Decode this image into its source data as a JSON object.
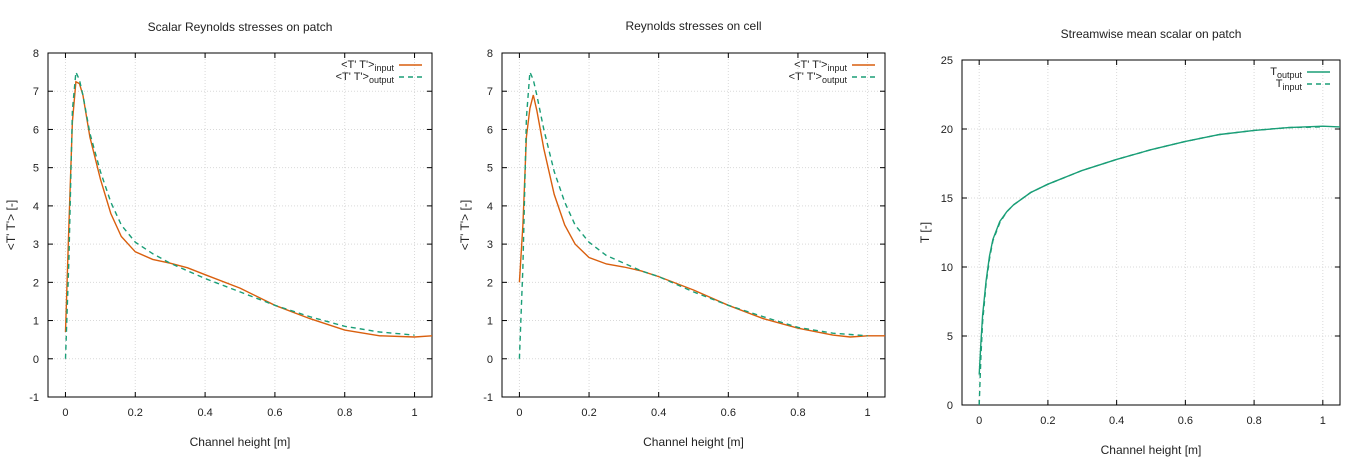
{
  "chart_data": [
    {
      "type": "line",
      "title": "Scalar Reynolds stresses on patch",
      "xlabel": "Channel height [m]",
      "ylabel": "<T' T'> [-]",
      "xlim": [
        -0.05,
        1.05
      ],
      "ylim": [
        -1,
        8
      ],
      "xticks": [
        0,
        0.2,
        0.4,
        0.6,
        0.8,
        1
      ],
      "xtick_labels": [
        "0",
        "0.2",
        "0.4",
        "0.6",
        "0.8",
        "1"
      ],
      "yticks": [
        -1,
        0,
        1,
        2,
        3,
        4,
        5,
        6,
        7,
        8
      ],
      "ytick_labels": [
        "-1",
        "0",
        "1",
        "2",
        "3",
        "4",
        "5",
        "6",
        "7",
        "8"
      ],
      "grid": true,
      "legend_position": "top-right",
      "series": [
        {
          "name": "<T' T'>",
          "name_sub": "input",
          "color": "#d95f0e",
          "dash": "solid",
          "x": [
            0,
            0.01,
            0.02,
            0.03,
            0.04,
            0.05,
            0.07,
            0.1,
            0.13,
            0.16,
            0.2,
            0.25,
            0.3,
            0.35,
            0.4,
            0.5,
            0.6,
            0.7,
            0.8,
            0.9,
            1.0,
            1.05
          ],
          "y": [
            0.7,
            3.5,
            6.2,
            7.25,
            7.2,
            6.9,
            5.8,
            4.7,
            3.8,
            3.2,
            2.8,
            2.6,
            2.5,
            2.38,
            2.2,
            1.85,
            1.4,
            1.05,
            0.75,
            0.6,
            0.57,
            0.6
          ]
        },
        {
          "name": "<T' T'>",
          "name_sub": "output",
          "color": "#1a9e77",
          "dash": "dashed",
          "x": [
            0,
            0.01,
            0.02,
            0.03,
            0.04,
            0.05,
            0.07,
            0.1,
            0.13,
            0.16,
            0.2,
            0.25,
            0.3,
            0.35,
            0.4,
            0.5,
            0.6,
            0.7,
            0.8,
            0.9,
            1.0
          ],
          "y": [
            0.0,
            2.6,
            6.5,
            7.5,
            7.3,
            6.9,
            5.9,
            4.9,
            4.1,
            3.5,
            3.05,
            2.75,
            2.5,
            2.3,
            2.1,
            1.75,
            1.4,
            1.1,
            0.85,
            0.7,
            0.62
          ]
        }
      ]
    },
    {
      "type": "line",
      "title": "Reynolds stresses on cell",
      "xlabel": "Channel height [m]",
      "ylabel": "<T' T'> [-]",
      "xlim": [
        -0.05,
        1.05
      ],
      "ylim": [
        -1,
        8
      ],
      "xticks": [
        0,
        0.2,
        0.4,
        0.6,
        0.8,
        1
      ],
      "xtick_labels": [
        "0",
        "0.2",
        "0.4",
        "0.6",
        "0.8",
        "1"
      ],
      "yticks": [
        -1,
        0,
        1,
        2,
        3,
        4,
        5,
        6,
        7,
        8
      ],
      "ytick_labels": [
        "-1",
        "0",
        "1",
        "2",
        "3",
        "4",
        "5",
        "6",
        "7",
        "8"
      ],
      "grid": true,
      "legend_position": "top-right",
      "series": [
        {
          "name": "<T' T'>",
          "name_sub": "input",
          "color": "#d95f0e",
          "dash": "solid",
          "x": [
            0,
            0.01,
            0.02,
            0.03,
            0.04,
            0.05,
            0.07,
            0.1,
            0.13,
            0.16,
            0.2,
            0.25,
            0.3,
            0.35,
            0.4,
            0.5,
            0.6,
            0.7,
            0.8,
            0.9,
            0.95,
            1.0,
            1.05
          ],
          "y": [
            2.0,
            3.5,
            5.8,
            6.55,
            6.9,
            6.5,
            5.5,
            4.3,
            3.5,
            3.0,
            2.65,
            2.48,
            2.4,
            2.3,
            2.15,
            1.8,
            1.4,
            1.05,
            0.8,
            0.62,
            0.57,
            0.6,
            0.6
          ]
        },
        {
          "name": "<T' T'>",
          "name_sub": "output",
          "color": "#1a9e77",
          "dash": "dashed",
          "x": [
            0,
            0.01,
            0.02,
            0.03,
            0.04,
            0.05,
            0.07,
            0.1,
            0.13,
            0.16,
            0.2,
            0.25,
            0.3,
            0.35,
            0.4,
            0.5,
            0.6,
            0.7,
            0.8,
            0.9,
            1.0
          ],
          "y": [
            0.0,
            2.4,
            6.3,
            7.5,
            7.3,
            6.9,
            6.0,
            4.9,
            4.1,
            3.5,
            3.05,
            2.7,
            2.5,
            2.3,
            2.15,
            1.75,
            1.4,
            1.1,
            0.82,
            0.67,
            0.6
          ]
        }
      ]
    },
    {
      "type": "line",
      "title": "Streamwise mean scalar on patch",
      "xlabel": "Channel height [m]",
      "ylabel": "T [-]",
      "xlim": [
        -0.05,
        1.05
      ],
      "ylim": [
        0,
        25
      ],
      "xticks": [
        0,
        0.2,
        0.4,
        0.6,
        0.8,
        1
      ],
      "xtick_labels": [
        "0",
        "0.2",
        "0.4",
        "0.6",
        "0.8",
        "1"
      ],
      "yticks": [
        0,
        5,
        10,
        15,
        20,
        25
      ],
      "ytick_labels": [
        "0",
        "5",
        "10",
        "15",
        "20",
        "25"
      ],
      "grid": true,
      "legend_position": "top-right",
      "series": [
        {
          "name": "T",
          "name_sub": "output",
          "color": "#1a9e77",
          "dash": "solid",
          "x": [
            0,
            0.005,
            0.01,
            0.02,
            0.03,
            0.04,
            0.06,
            0.08,
            0.1,
            0.15,
            0.2,
            0.3,
            0.4,
            0.5,
            0.6,
            0.7,
            0.8,
            0.9,
            1.0,
            1.05
          ],
          "y": [
            2.2,
            4.5,
            6.5,
            9.0,
            10.8,
            12.0,
            13.3,
            14.0,
            14.5,
            15.4,
            16.0,
            17.0,
            17.8,
            18.5,
            19.1,
            19.6,
            19.9,
            20.1,
            20.2,
            20.15
          ]
        },
        {
          "name": "T",
          "name_sub": "input",
          "color": "#1a9e77",
          "dash": "dashed",
          "x": [
            0,
            0.005,
            0.01,
            0.02,
            0.03,
            0.04,
            0.06,
            0.08,
            0.1,
            0.15,
            0.2,
            0.3,
            0.4,
            0.5,
            0.6,
            0.7,
            0.8,
            0.9,
            1.0
          ],
          "y": [
            0.0,
            3.5,
            6.0,
            8.8,
            10.6,
            11.9,
            13.2,
            14.0,
            14.5,
            15.4,
            16.0,
            17.0,
            17.8,
            18.5,
            19.1,
            19.6,
            19.9,
            20.1,
            20.15
          ]
        }
      ]
    }
  ]
}
